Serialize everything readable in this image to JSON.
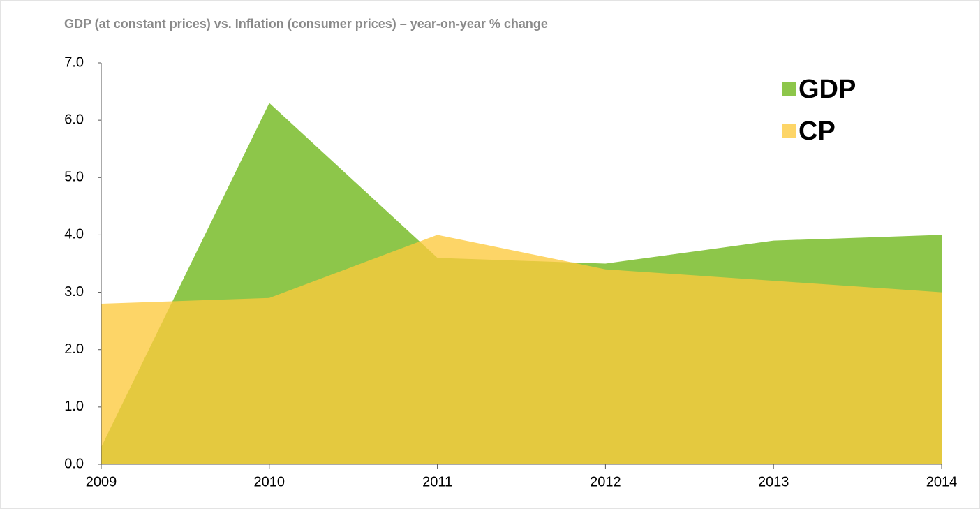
{
  "chart_data": {
    "type": "area",
    "title": "GDP (at constant prices) vs. Inflation (consumer prices) – year-on-year % change",
    "categories": [
      "2009",
      "2010",
      "2011",
      "2012",
      "2013",
      "2014"
    ],
    "series": [
      {
        "name": "GDP",
        "color": "#8dc64a",
        "values": [
          0.3,
          6.3,
          3.6,
          3.5,
          3.9,
          4.0
        ]
      },
      {
        "name": "CP",
        "color": "#fcc93c",
        "values": [
          2.8,
          2.9,
          4.0,
          3.4,
          3.2,
          3.0
        ]
      }
    ],
    "ylim": [
      0,
      7
    ],
    "yticks": [
      {
        "value": 0,
        "label": "0.0"
      },
      {
        "value": 1,
        "label": "1.0"
      },
      {
        "value": 2,
        "label": "2.0"
      },
      {
        "value": 3,
        "label": "3.0"
      },
      {
        "value": 4,
        "label": "4.0"
      },
      {
        "value": 5,
        "label": "5.0"
      },
      {
        "value": 6,
        "label": "6.0"
      },
      {
        "value": 7,
        "label": "7.0"
      }
    ],
    "legend": "top-right"
  }
}
